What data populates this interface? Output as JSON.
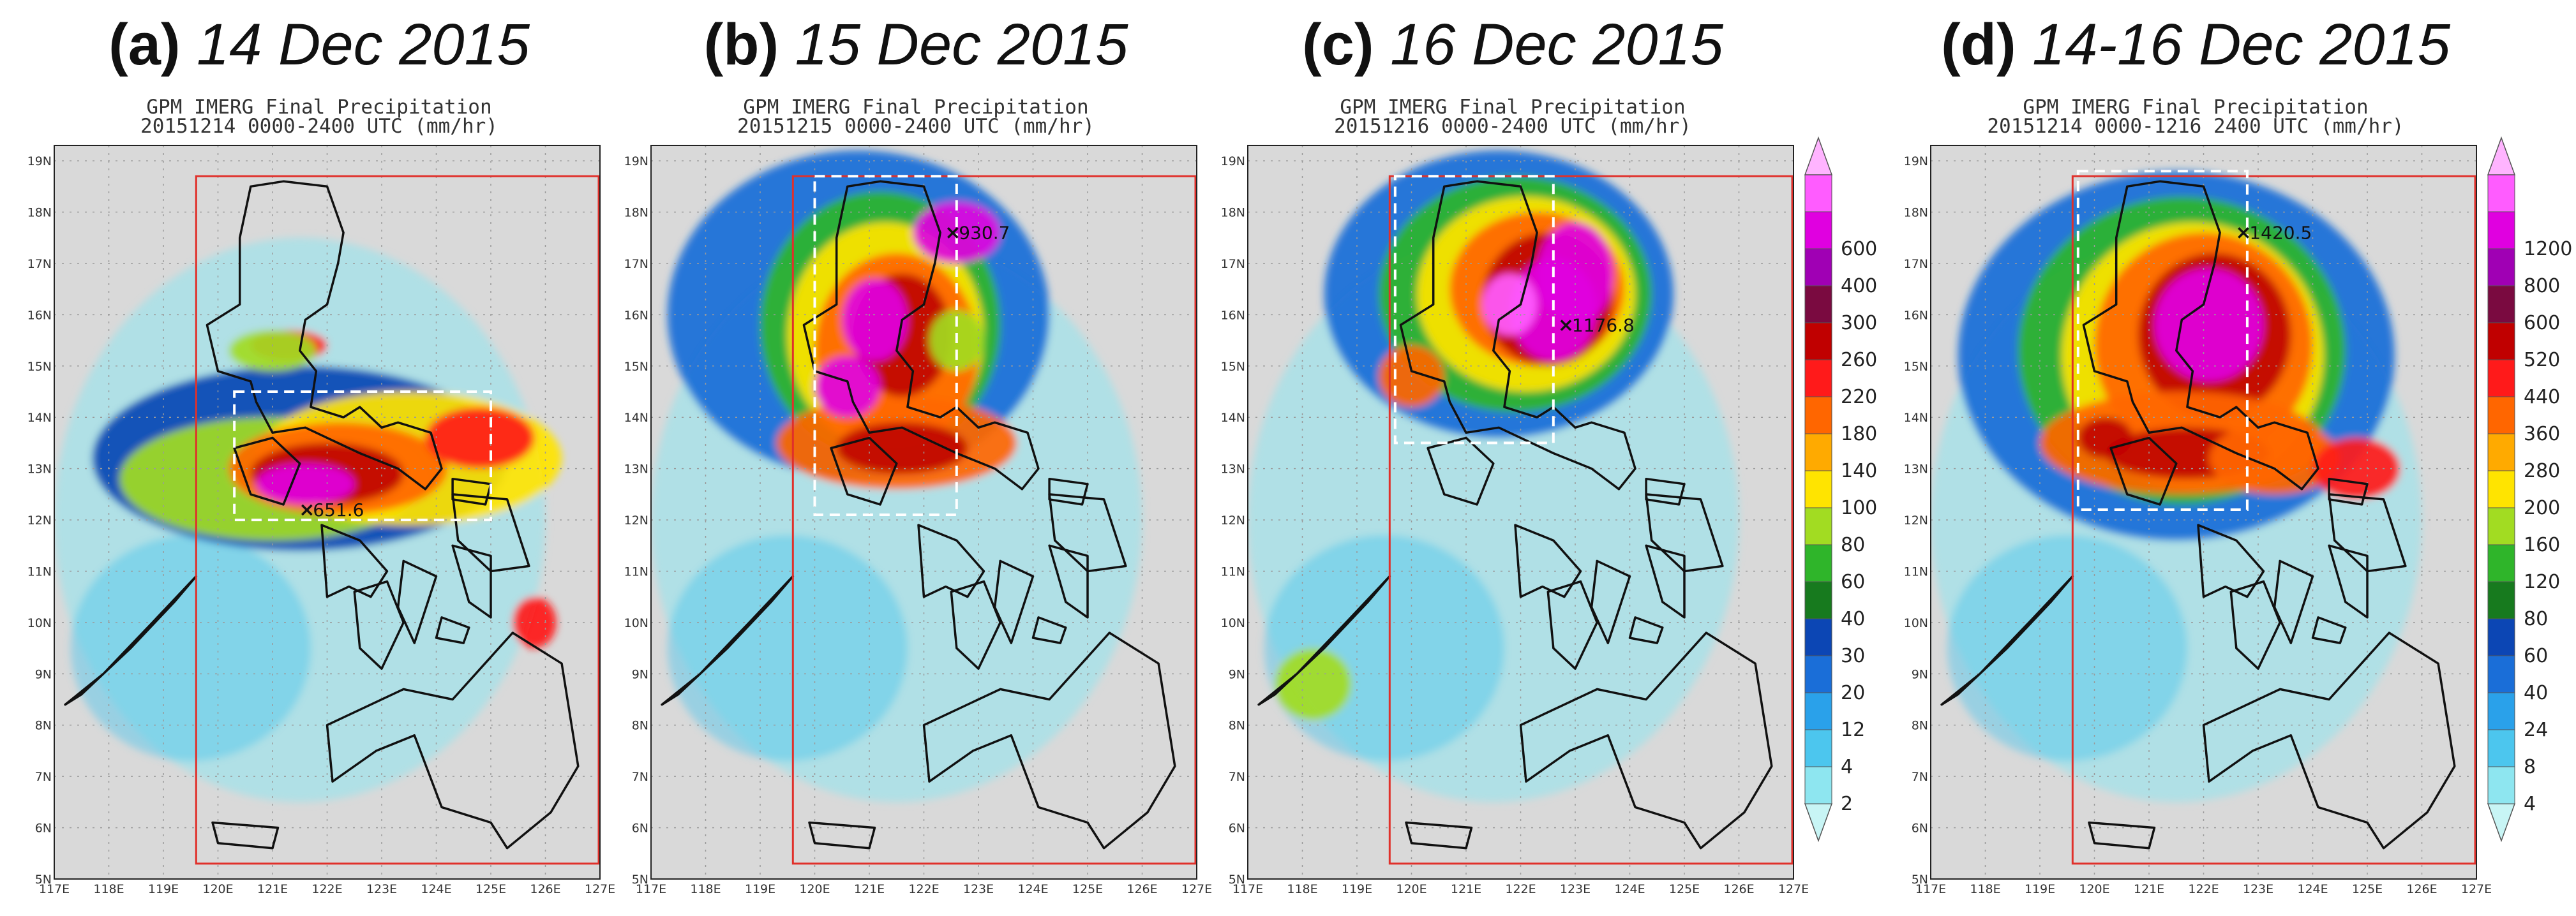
{
  "panels": [
    {
      "label": "(a)",
      "date": "14 Dec 2015",
      "subtitle1": "GPM IMERG Final Precipitation",
      "subtitle2": "20151214 0000-2400 UTC (mm/hr)",
      "max_label": "651.6"
    },
    {
      "label": "(b)",
      "date": "15 Dec 2015",
      "subtitle1": "GPM IMERG Final Precipitation",
      "subtitle2": "20151215 0000-2400 UTC (mm/hr)",
      "max_label": "930.7"
    },
    {
      "label": "(c)",
      "date": "16 Dec 2015",
      "subtitle1": "GPM IMERG Final Precipitation",
      "subtitle2": "20151216 0000-2400 UTC (mm/hr)",
      "max_label": "1176.8"
    },
    {
      "label": "(d)",
      "date": "14-16 Dec 2015",
      "subtitle1": "GPM IMERG Final Precipitation",
      "subtitle2": "20151214 0000-1216 2400 UTC (mm/hr)",
      "max_label": "1420.5"
    }
  ],
  "lat_labels": [
    "19N",
    "18N",
    "17N",
    "16N",
    "15N",
    "14N",
    "13N",
    "12N",
    "11N",
    "10N",
    "9N",
    "8N",
    "7N",
    "6N",
    "5N"
  ],
  "lon_labels": [
    "117E",
    "118E",
    "119E",
    "120E",
    "121E",
    "122E",
    "123E",
    "124E",
    "125E",
    "126E",
    "127E"
  ],
  "colorbar_daily": {
    "labels": [
      "2",
      "4",
      "12",
      "20",
      "30",
      "40",
      "60",
      "80",
      "100",
      "140",
      "180",
      "220",
      "260",
      "300",
      "400",
      "600"
    ],
    "colors": [
      "#c8f5f5",
      "#8ee6f0",
      "#4cc6ee",
      "#2aa1ea",
      "#1a6ed8",
      "#0c46b4",
      "#177a1e",
      "#2fb52a",
      "#a2dc22",
      "#ffe400",
      "#ffaa00",
      "#ff6600",
      "#ff1a1a",
      "#c00000",
      "#7a0a40",
      "#a000b4",
      "#e000e0",
      "#ff5cff",
      "#ffb4ff"
    ]
  },
  "colorbar_total": {
    "labels": [
      "4",
      "8",
      "24",
      "40",
      "60",
      "80",
      "120",
      "160",
      "200",
      "280",
      "360",
      "440",
      "520",
      "600",
      "800",
      "1200"
    ],
    "colors": [
      "#c8f5f5",
      "#8ee6f0",
      "#4cc6ee",
      "#2aa1ea",
      "#1a6ed8",
      "#0c46b4",
      "#177a1e",
      "#2fb52a",
      "#a2dc22",
      "#ffe400",
      "#ffaa00",
      "#ff6600",
      "#ff1a1a",
      "#c00000",
      "#7a0a40",
      "#a000b4",
      "#e000e0",
      "#ff5cff",
      "#ffb4ff"
    ]
  }
}
